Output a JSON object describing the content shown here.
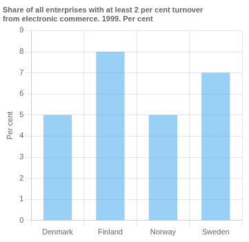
{
  "chart_data": {
    "type": "bar",
    "title": "Share of all enterprises with at least 2 per cent turnover\nfrom electronic commerce. 1999. Per cent",
    "ylabel": "Per cent",
    "categories": [
      "Denmark",
      "Finland",
      "Norway",
      "Sweden"
    ],
    "values": [
      5.0,
      8.0,
      5.0,
      7.0
    ],
    "ylim": [
      0,
      9
    ],
    "yticks": [
      0,
      1,
      2,
      3,
      4,
      5,
      6,
      7,
      8,
      9
    ],
    "grid": true
  }
}
